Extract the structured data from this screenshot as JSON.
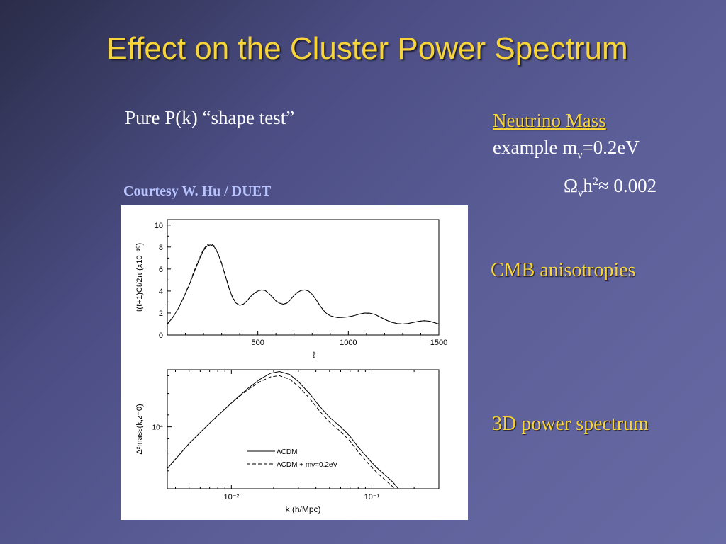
{
  "slide": {
    "title": "Effect on the Cluster Power Spectrum",
    "left_heading": "Pure P(k) “shape test”",
    "courtesy": "Courtesy W. Hu / DUET",
    "neutrino": {
      "heading": "Neutrino Mass",
      "line2_text": "example m",
      "line2_sub": "ν",
      "line2_rest": "=0.2eV",
      "line3_omega": "Ω",
      "line3_sub": "ν",
      "line3_h": "h",
      "line3_sup": "2",
      "line3_rest": "≈ 0.002"
    },
    "label_cmb": "CMB anisotropies",
    "label_pk": "3D power spectrum"
  },
  "colors": {
    "title": "#f7d43a",
    "accent_label": "#f7d43a",
    "body_text": "#ffffff",
    "courtesy": "#b8c4ff"
  },
  "chart_data": [
    {
      "type": "line",
      "panel": "top",
      "xlabel": "ℓ",
      "ylabel": "ℓ(ℓ+1)Cℓ/2π  (x10⁻¹⁰)",
      "xlim": [
        0,
        1500
      ],
      "ylim": [
        0,
        10.5
      ],
      "x_ticks": [
        500,
        1000,
        1500
      ],
      "y_ticks": [
        0,
        2,
        4,
        6,
        8,
        10
      ],
      "series": [
        {
          "style": "solid",
          "x": [
            0,
            30,
            60,
            90,
            120,
            150,
            180,
            200,
            220,
            240,
            260,
            280,
            300,
            320,
            340,
            360,
            380,
            400,
            420,
            440,
            460,
            480,
            500,
            520,
            540,
            560,
            580,
            600,
            620,
            640,
            660,
            680,
            700,
            720,
            740,
            760,
            780,
            800,
            820,
            840,
            860,
            880,
            900,
            920,
            940,
            960,
            980,
            1000,
            1030,
            1060,
            1090,
            1120,
            1150,
            1180,
            1210,
            1240,
            1270,
            1300,
            1330,
            1360,
            1390,
            1420,
            1450,
            1480,
            1500
          ],
          "y": [
            1.0,
            1.6,
            2.4,
            3.4,
            4.5,
            5.8,
            7.0,
            7.7,
            8.1,
            8.2,
            8.0,
            7.4,
            6.5,
            5.4,
            4.3,
            3.4,
            2.9,
            2.7,
            2.8,
            3.1,
            3.5,
            3.8,
            4.0,
            4.1,
            4.05,
            3.8,
            3.45,
            3.1,
            2.9,
            2.8,
            2.9,
            3.2,
            3.6,
            3.9,
            4.05,
            4.1,
            4.0,
            3.7,
            3.25,
            2.75,
            2.3,
            1.95,
            1.75,
            1.65,
            1.6,
            1.6,
            1.62,
            1.65,
            1.75,
            1.9,
            2.0,
            1.98,
            1.85,
            1.6,
            1.35,
            1.15,
            1.05,
            1.0,
            1.05,
            1.15,
            1.25,
            1.3,
            1.25,
            1.1,
            1.0
          ]
        },
        {
          "style": "dashed",
          "x": [
            0,
            30,
            60,
            90,
            120,
            150,
            180,
            200,
            220,
            240,
            260,
            280,
            300,
            320,
            340,
            360,
            380,
            400,
            420,
            440,
            460,
            480,
            500,
            520,
            540,
            560,
            580,
            600,
            620,
            640,
            660,
            680,
            700,
            720,
            740,
            760,
            780,
            800,
            820,
            840,
            860,
            880,
            900,
            920,
            940,
            960,
            980,
            1000,
            1030,
            1060,
            1090,
            1120,
            1150,
            1180,
            1210,
            1240,
            1270,
            1300,
            1330,
            1360,
            1390,
            1420,
            1450,
            1480,
            1500
          ],
          "y": [
            1.0,
            1.6,
            2.4,
            3.4,
            4.6,
            5.9,
            7.1,
            7.8,
            8.2,
            8.3,
            8.1,
            7.45,
            6.55,
            5.45,
            4.35,
            3.45,
            2.9,
            2.7,
            2.8,
            3.1,
            3.5,
            3.8,
            4.0,
            4.1,
            4.05,
            3.8,
            3.45,
            3.1,
            2.9,
            2.8,
            2.9,
            3.2,
            3.6,
            3.9,
            4.05,
            4.1,
            4.0,
            3.7,
            3.25,
            2.75,
            2.3,
            1.95,
            1.75,
            1.65,
            1.6,
            1.6,
            1.62,
            1.65,
            1.75,
            1.9,
            2.0,
            1.98,
            1.85,
            1.6,
            1.35,
            1.15,
            1.05,
            1.0,
            1.05,
            1.15,
            1.25,
            1.3,
            1.25,
            1.1,
            1.0
          ]
        }
      ]
    },
    {
      "type": "line",
      "panel": "bottom",
      "xlabel": "k (h/Mpc)",
      "ylabel": "Δ²mass(k,z=0)",
      "x_scale": "log",
      "xlim": [
        0.0035,
        0.3
      ],
      "x_ticks": [
        "10⁻²",
        "10⁻¹"
      ],
      "x_tick_values": [
        0.01,
        0.1
      ],
      "y_ticks": [
        "10⁴"
      ],
      "legend": [
        "ΛCDM",
        "ΛCDM + mν=0.2eV"
      ],
      "legend_position": "bottom-center",
      "series": [
        {
          "name": "ΛCDM",
          "style": "solid",
          "x": [
            0.0035,
            0.005,
            0.007,
            0.01,
            0.013,
            0.016,
            0.019,
            0.022,
            0.026,
            0.03,
            0.036,
            0.042,
            0.05,
            0.06,
            0.07,
            0.08,
            0.09,
            0.1,
            0.11,
            0.12,
            0.14,
            0.16,
            0.18
          ],
          "y": [
            0.17,
            0.38,
            0.55,
            0.72,
            0.84,
            0.92,
            0.97,
            0.985,
            0.96,
            0.9,
            0.8,
            0.7,
            0.6,
            0.52,
            0.44,
            0.35,
            0.28,
            0.22,
            0.17,
            0.13,
            0.06,
            -0.02,
            -0.1
          ]
        },
        {
          "name": "ΛCDM + mν=0.2eV",
          "style": "dashed",
          "x": [
            0.0035,
            0.005,
            0.007,
            0.01,
            0.013,
            0.016,
            0.019,
            0.022,
            0.026,
            0.03,
            0.036,
            0.042,
            0.05,
            0.06,
            0.07,
            0.08,
            0.09,
            0.1,
            0.11,
            0.12,
            0.14,
            0.16,
            0.18
          ],
          "y": [
            0.17,
            0.38,
            0.55,
            0.72,
            0.83,
            0.9,
            0.94,
            0.95,
            0.92,
            0.86,
            0.76,
            0.66,
            0.56,
            0.48,
            0.4,
            0.31,
            0.24,
            0.18,
            0.13,
            0.09,
            0.02,
            -0.06,
            -0.14
          ]
        }
      ]
    }
  ]
}
